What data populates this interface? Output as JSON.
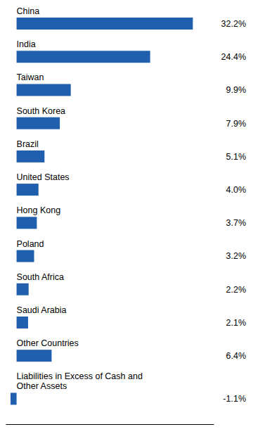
{
  "chart_data": {
    "type": "bar",
    "orientation": "horizontal",
    "categories": [
      "China",
      "India",
      "Taiwan",
      "South Korea",
      "Brazil",
      "United States",
      "Hong Kong",
      "Poland",
      "South Africa",
      "Saudi Arabia",
      "Other Countries",
      "Liabilities in Excess of Cash and\nOther Assets"
    ],
    "values": [
      32.2,
      24.4,
      9.9,
      7.9,
      5.1,
      4.0,
      3.7,
      3.2,
      2.2,
      2.1,
      6.4,
      -1.1
    ],
    "value_labels": [
      "32.2%",
      "24.4%",
      "9.9%",
      "7.9%",
      "5.1%",
      "4.0%",
      "3.7%",
      "3.2%",
      "2.2%",
      "2.1%",
      "6.4%",
      "-1.1%"
    ],
    "color": "#1F5FAD",
    "xlim": [
      -2,
      36
    ],
    "data_labels": true,
    "tick_labels": false,
    "grid": false
  }
}
